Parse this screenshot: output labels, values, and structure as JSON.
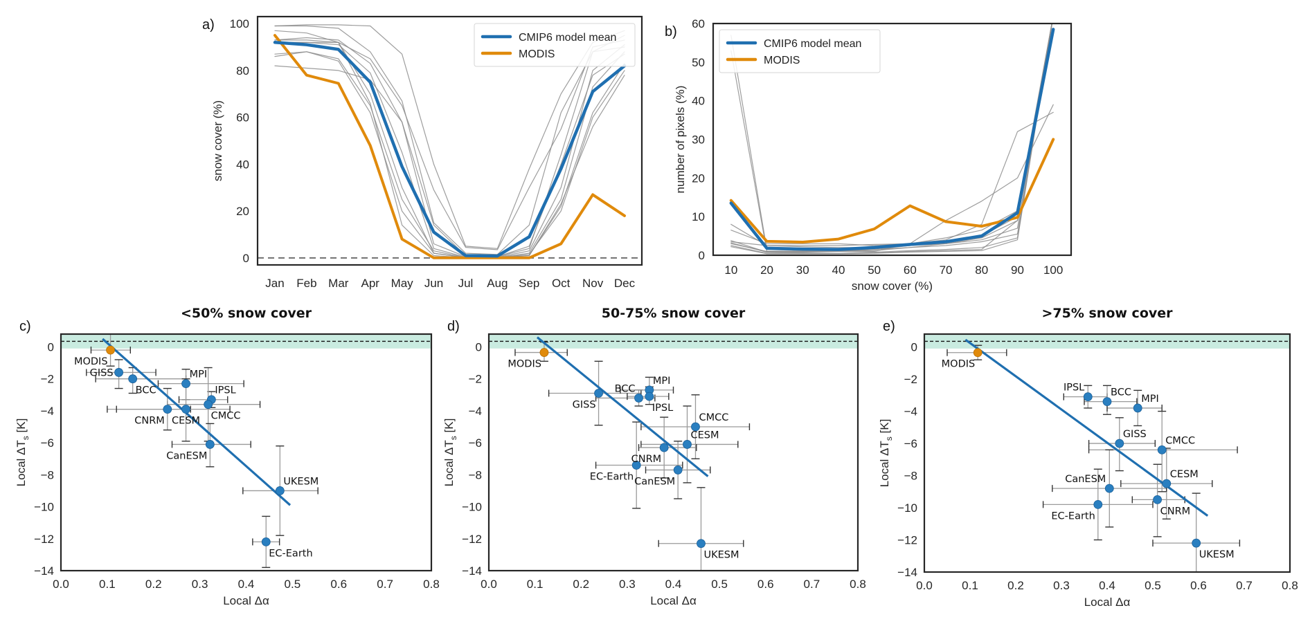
{
  "colors": {
    "model_mean": "#1f6fb0",
    "modis": "#e08a0b",
    "models": "#8c8c8c",
    "scatter_point": "#2a7fc0",
    "obs_band": "#c9ebe0",
    "fit_line": "#1f6fb0"
  },
  "chart_data": [
    {
      "id": "a",
      "panel_label": "a)",
      "type": "line",
      "title": "",
      "xlabel": "",
      "ylabel": "snow cover (%)",
      "categories": [
        "Jan",
        "Feb",
        "Mar",
        "Apr",
        "May",
        "Jun",
        "Jul",
        "Aug",
        "Sep",
        "Oct",
        "Nov",
        "Dec"
      ],
      "ylim": [
        -3,
        103
      ],
      "yticks": [
        0,
        20,
        40,
        60,
        80,
        100
      ],
      "reference_line": 0,
      "legend": {
        "placement": "top-right",
        "entries": [
          "CMIP6 model mean",
          "MODIS"
        ]
      },
      "series": [
        {
          "name": "CMIP6 model mean",
          "role": "mean",
          "values": [
            92,
            91,
            89,
            75,
            39,
            11,
            1,
            0.8,
            9,
            38,
            71,
            82
          ]
        },
        {
          "name": "MODIS",
          "role": "obs",
          "values": [
            95,
            78,
            74.5,
            48,
            8,
            0,
            0,
            0,
            0,
            6,
            27,
            18
          ]
        },
        {
          "name": "model 1",
          "role": "model",
          "values": [
            99,
            99,
            98,
            88,
            67,
            15,
            2,
            1.5,
            14,
            62,
            88,
            95
          ]
        },
        {
          "name": "model 2",
          "role": "model",
          "values": [
            99,
            99.5,
            99.5,
            99,
            87,
            40,
            5,
            4,
            38,
            70,
            92,
            97
          ]
        },
        {
          "name": "model 3",
          "role": "model",
          "values": [
            97,
            96,
            92,
            85,
            65,
            29,
            4.5,
            3.5,
            30,
            55,
            90,
            93
          ]
        },
        {
          "name": "model 4",
          "role": "model",
          "values": [
            93,
            94,
            93,
            83,
            58,
            6,
            0.5,
            0.5,
            4,
            44,
            88,
            90
          ]
        },
        {
          "name": "model 5",
          "role": "model",
          "values": [
            92,
            92,
            91,
            79,
            45,
            4,
            0.3,
            0.3,
            3,
            30,
            80,
            91
          ]
        },
        {
          "name": "model 6",
          "role": "model",
          "values": [
            86,
            88,
            85,
            65,
            25,
            3,
            0.2,
            0.2,
            2,
            25,
            73,
            88
          ]
        },
        {
          "name": "model 7",
          "role": "model",
          "values": [
            87,
            88,
            84,
            62,
            20,
            2,
            0.1,
            0.1,
            1.5,
            20,
            60,
            80
          ]
        },
        {
          "name": "model 8",
          "role": "model",
          "values": [
            82,
            81,
            80,
            76,
            58,
            14,
            1,
            0.5,
            5,
            40,
            78,
            87
          ]
        },
        {
          "name": "model 9",
          "role": "model",
          "values": [
            93,
            93,
            92,
            70,
            30,
            2,
            0.1,
            0.1,
            1,
            23,
            56,
            78
          ]
        },
        {
          "name": "model 10",
          "role": "model",
          "values": [
            92,
            92,
            92,
            66,
            14,
            1,
            0.1,
            0.1,
            1,
            22,
            62,
            83
          ]
        }
      ]
    },
    {
      "id": "b",
      "panel_label": "b)",
      "type": "line",
      "title": "",
      "xlabel": "snow cover (%)",
      "ylabel": "number of pixels (%)",
      "x": [
        10,
        20,
        30,
        40,
        50,
        60,
        70,
        80,
        90,
        100
      ],
      "xlim": [
        5,
        105
      ],
      "ylim": [
        0,
        60
      ],
      "yticks": [
        0,
        10,
        20,
        30,
        40,
        50,
        60
      ],
      "legend": {
        "placement": "top-left",
        "entries": [
          "CMIP6 model mean",
          "MODIS"
        ]
      },
      "series": [
        {
          "name": "CMIP6 model mean",
          "role": "mean",
          "values": [
            13.5,
            1.8,
            1.6,
            1.5,
            2.0,
            2.8,
            3.5,
            5.0,
            11.0,
            58.5
          ]
        },
        {
          "name": "MODIS",
          "role": "obs",
          "values": [
            14.2,
            3.6,
            3.4,
            4.2,
            6.8,
            12.8,
            8.7,
            7.5,
            9.8,
            30.0
          ]
        },
        {
          "name": "model 1",
          "role": "model",
          "values": [
            57,
            1.5,
            1.2,
            1.2,
            1.5,
            2.5,
            3.5,
            5.0,
            10,
            62
          ]
        },
        {
          "name": "model 2",
          "role": "model",
          "values": [
            53,
            1.0,
            1.0,
            1.0,
            1.2,
            2.0,
            3.0,
            4.5,
            9,
            62
          ]
        },
        {
          "name": "model 3",
          "role": "model",
          "values": [
            8,
            2.5,
            2.5,
            2.5,
            2.8,
            3.0,
            4.5,
            6.5,
            11.5,
            62
          ]
        },
        {
          "name": "model 4",
          "role": "model",
          "values": [
            6.5,
            3.0,
            3.0,
            3.0,
            2.5,
            3.0,
            9.0,
            14.0,
            20,
            39
          ]
        },
        {
          "name": "model 5",
          "role": "model",
          "values": [
            3.8,
            0.8,
            0.8,
            1.0,
            1.0,
            3.0,
            4.0,
            8.0,
            32,
            37
          ]
        },
        {
          "name": "model 6",
          "role": "model",
          "values": [
            3.5,
            2.5,
            2.2,
            2.0,
            2.0,
            2.5,
            3.0,
            4.0,
            7.0,
            62
          ]
        },
        {
          "name": "model 7",
          "role": "model",
          "values": [
            3.0,
            1.0,
            1.0,
            1.0,
            1.5,
            2.0,
            2.5,
            3.5,
            5.5,
            62
          ]
        },
        {
          "name": "model 8",
          "role": "model",
          "values": [
            2.5,
            0.5,
            0.5,
            0.5,
            0.8,
            1.2,
            1.5,
            2.0,
            4.5,
            62
          ]
        },
        {
          "name": "model 9",
          "role": "model",
          "values": [
            2.2,
            0.4,
            0.4,
            0.4,
            0.5,
            0.8,
            1.0,
            1.2,
            4.0,
            62
          ]
        },
        {
          "name": "model 10",
          "role": "model",
          "values": [
            3.2,
            0.8,
            0.6,
            0.5,
            0.6,
            1.0,
            1.2,
            1.5,
            9.0,
            62
          ]
        }
      ]
    },
    {
      "id": "c",
      "panel_label": "c)",
      "type": "scatter",
      "title": "<50% snow cover",
      "xlabel": "Local Δα",
      "ylabel": "Local ΔT",
      "ylabel_sub": "s",
      "ylabel_unit": " [K]",
      "xlim": [
        0.0,
        0.8
      ],
      "ylim": [
        -14,
        0.8
      ],
      "xticks": [
        "0.0",
        "0.1",
        "0.2",
        "0.3",
        "0.4",
        "0.5",
        "0.6",
        "0.7",
        "0.8"
      ],
      "yticks": [
        0,
        -2,
        -4,
        -6,
        -8,
        -10,
        -12,
        -14
      ],
      "obs_band": [
        -0.1,
        0.75
      ],
      "obs_line": 0.35,
      "fit_line": {
        "x": [
          0.09,
          0.495
        ],
        "y": [
          0.5,
          -9.9
        ]
      },
      "points": [
        {
          "name": "MODIS",
          "obs": true,
          "x": 0.107,
          "y": -0.2,
          "xerr": [
            0.065,
            0.15
          ],
          "yerr": [
            -1.2,
            0.8
          ],
          "label_pos": "below-left"
        },
        {
          "name": "GISS",
          "x": 0.125,
          "y": -1.6,
          "xerr": [
            0.055,
            0.205
          ],
          "yerr": [
            -2.6,
            -0.8
          ],
          "label_pos": "left"
        },
        {
          "name": "BCC",
          "x": 0.155,
          "y": -2.0,
          "xerr": [
            0.075,
            0.27
          ],
          "yerr": [
            -2.9,
            -1.3
          ],
          "label_pos": "below-right"
        },
        {
          "name": "MPI",
          "x": 0.27,
          "y": -2.3,
          "xerr": [
            0.21,
            0.395
          ],
          "yerr": [
            -3.3,
            -1.4
          ],
          "label_pos": "above-right"
        },
        {
          "name": "IPSL",
          "x": 0.325,
          "y": -3.3,
          "xerr": [
            0.255,
            0.36
          ],
          "yerr": [
            -3.8,
            -2.8
          ],
          "label_pos": "above-right"
        },
        {
          "name": "CMCC",
          "x": 0.318,
          "y": -3.6,
          "xerr": [
            0.23,
            0.43
          ],
          "yerr": [
            -5.9,
            -1.3
          ],
          "label_pos": "below-right"
        },
        {
          "name": "CNRM",
          "x": 0.23,
          "y": -3.9,
          "xerr": [
            0.1,
            0.28
          ],
          "yerr": [
            -5.2,
            -2.6
          ],
          "label_pos": "below-left"
        },
        {
          "name": "CESM",
          "x": 0.27,
          "y": -3.9,
          "xerr": [
            0.12,
            0.365
          ],
          "yerr": [
            -5.9,
            -2.0
          ],
          "label_pos": "below"
        },
        {
          "name": "CanESM",
          "x": 0.322,
          "y": -6.1,
          "xerr": [
            0.24,
            0.41
          ],
          "yerr": [
            -7.5,
            -4.8
          ],
          "label_pos": "below-left"
        },
        {
          "name": "UKESM",
          "x": 0.473,
          "y": -9.0,
          "xerr": [
            0.393,
            0.555
          ],
          "yerr": [
            -11.8,
            -6.2
          ],
          "label_pos": "above-right"
        },
        {
          "name": "EC-Earth",
          "x": 0.443,
          "y": -12.2,
          "xerr": [
            0.414,
            0.472
          ],
          "yerr": [
            -13.8,
            -10.6
          ],
          "label_pos": "below-right"
        }
      ]
    },
    {
      "id": "d",
      "panel_label": "d)",
      "type": "scatter",
      "title": "50-75% snow cover",
      "xlabel": "Local Δα",
      "ylabel": "Local ΔT",
      "ylabel_sub": "s",
      "ylabel_unit": " [K]",
      "xlim": [
        0.0,
        0.8
      ],
      "ylim": [
        -14,
        0.8
      ],
      "xticks": [
        "0.0",
        "0.1",
        "0.2",
        "0.3",
        "0.4",
        "0.5",
        "0.6",
        "0.7",
        "0.8"
      ],
      "yticks": [
        0,
        -2,
        -4,
        -6,
        -8,
        -10,
        -12,
        -14
      ],
      "obs_band": [
        -0.1,
        0.75
      ],
      "obs_line": 0.35,
      "fit_line": {
        "x": [
          0.105,
          0.475
        ],
        "y": [
          0.6,
          -8.1
        ]
      },
      "points": [
        {
          "name": "MODIS",
          "obs": true,
          "x": 0.12,
          "y": -0.35,
          "xerr": [
            0.057,
            0.17
          ],
          "yerr": [
            -0.9,
            0.3
          ],
          "label_pos": "below-left"
        },
        {
          "name": "GISS",
          "x": 0.238,
          "y": -2.9,
          "xerr": [
            0.13,
            0.33
          ],
          "yerr": [
            -4.9,
            -0.9
          ],
          "label_pos": "below-left"
        },
        {
          "name": "BCC",
          "x": 0.325,
          "y": -3.2,
          "xerr": [
            0.232,
            0.36
          ],
          "yerr": [
            -3.7,
            -2.7
          ],
          "label_pos": "above-left"
        },
        {
          "name": "MPI",
          "x": 0.348,
          "y": -2.7,
          "xerr": [
            0.285,
            0.4
          ],
          "yerr": [
            -3.2,
            -1.9
          ],
          "label_pos": "above-right"
        },
        {
          "name": "IPSL",
          "x": 0.348,
          "y": -3.1,
          "xerr": [
            0.3,
            0.39
          ],
          "yerr": [
            -3.6,
            -2.5
          ],
          "label_pos": "below-right"
        },
        {
          "name": "CMCC",
          "x": 0.448,
          "y": -5.0,
          "xerr": [
            0.33,
            0.565
          ],
          "yerr": [
            -7.0,
            -3.0
          ],
          "label_pos": "above-right"
        },
        {
          "name": "CESM",
          "x": 0.43,
          "y": -6.1,
          "xerr": [
            0.33,
            0.54
          ],
          "yerr": [
            -8.5,
            -3.7
          ],
          "label_pos": "above-right"
        },
        {
          "name": "CNRM",
          "x": 0.38,
          "y": -6.3,
          "xerr": [
            0.325,
            0.45
          ],
          "yerr": [
            -8.2,
            -4.4
          ],
          "label_pos": "below-left"
        },
        {
          "name": "EC-Earth",
          "x": 0.32,
          "y": -7.4,
          "xerr": [
            0.232,
            0.42
          ],
          "yerr": [
            -10.1,
            -4.7
          ],
          "label_pos": "below-left"
        },
        {
          "name": "CanESM",
          "x": 0.41,
          "y": -7.7,
          "xerr": [
            0.34,
            0.48
          ],
          "yerr": [
            -9.5,
            -5.9
          ],
          "label_pos": "below-left"
        },
        {
          "name": "UKESM",
          "x": 0.46,
          "y": -12.3,
          "xerr": [
            0.368,
            0.552
          ],
          "yerr": [
            -14.0,
            -8.8
          ],
          "label_pos": "below-right"
        }
      ]
    },
    {
      "id": "e",
      "panel_label": "e)",
      "type": "scatter",
      "title": ">75% snow cover",
      "xlabel": "Local Δα",
      "ylabel": "Local ΔT",
      "ylabel_sub": "s",
      "ylabel_unit": " [K]",
      "xlim": [
        0.0,
        0.8
      ],
      "ylim": [
        -14,
        0.8
      ],
      "xticks": [
        "0.0",
        "0.1",
        "0.2",
        "0.3",
        "0.4",
        "0.5",
        "0.6",
        "0.7",
        "0.8"
      ],
      "yticks": [
        0,
        -2,
        -4,
        -6,
        -8,
        -10,
        -12,
        -14
      ],
      "obs_band": [
        -0.1,
        0.75
      ],
      "obs_line": 0.35,
      "fit_line": {
        "x": [
          0.09,
          0.62
        ],
        "y": [
          0.45,
          -10.5
        ]
      },
      "points": [
        {
          "name": "MODIS",
          "obs": true,
          "x": 0.117,
          "y": -0.35,
          "xerr": [
            0.05,
            0.18
          ],
          "yerr": [
            -0.8,
            0.1
          ],
          "label_pos": "below-left"
        },
        {
          "name": "IPSL",
          "x": 0.358,
          "y": -3.1,
          "xerr": [
            0.305,
            0.4
          ],
          "yerr": [
            -3.8,
            -2.4
          ],
          "label_pos": "above-left"
        },
        {
          "name": "BCC",
          "x": 0.4,
          "y": -3.4,
          "xerr": [
            0.35,
            0.465
          ],
          "yerr": [
            -4.2,
            -2.4
          ],
          "label_pos": "above-right"
        },
        {
          "name": "MPI",
          "x": 0.467,
          "y": -3.8,
          "xerr": [
            0.4,
            0.52
          ],
          "yerr": [
            -4.9,
            -2.7
          ],
          "label_pos": "above-right"
        },
        {
          "name": "GISS",
          "x": 0.427,
          "y": -6.0,
          "xerr": [
            0.36,
            0.505
          ],
          "yerr": [
            -7.7,
            -4.4
          ],
          "label_pos": "above-right"
        },
        {
          "name": "CMCC",
          "x": 0.52,
          "y": -6.4,
          "xerr": [
            0.36,
            0.685
          ],
          "yerr": [
            -9.0,
            -4.0
          ],
          "label_pos": "above-right"
        },
        {
          "name": "CESM",
          "x": 0.53,
          "y": -8.5,
          "xerr": [
            0.43,
            0.63
          ],
          "yerr": [
            -10.7,
            -6.3
          ],
          "label_pos": "above-right"
        },
        {
          "name": "CanESM",
          "x": 0.405,
          "y": -8.8,
          "xerr": [
            0.28,
            0.53
          ],
          "yerr": [
            -11.2,
            -6.4
          ],
          "label_pos": "above-left"
        },
        {
          "name": "CNRM",
          "x": 0.51,
          "y": -9.5,
          "xerr": [
            0.455,
            0.57
          ],
          "yerr": [
            -11.8,
            -7.3
          ],
          "label_pos": "below-right"
        },
        {
          "name": "EC-Earth",
          "x": 0.38,
          "y": -9.8,
          "xerr": [
            0.26,
            0.5
          ],
          "yerr": [
            -12.0,
            -7.6
          ],
          "label_pos": "below-left"
        },
        {
          "name": "UKESM",
          "x": 0.595,
          "y": -12.2,
          "xerr": [
            0.5,
            0.69
          ],
          "yerr": [
            -14.0,
            -9.1
          ],
          "label_pos": "below-right"
        }
      ]
    }
  ]
}
